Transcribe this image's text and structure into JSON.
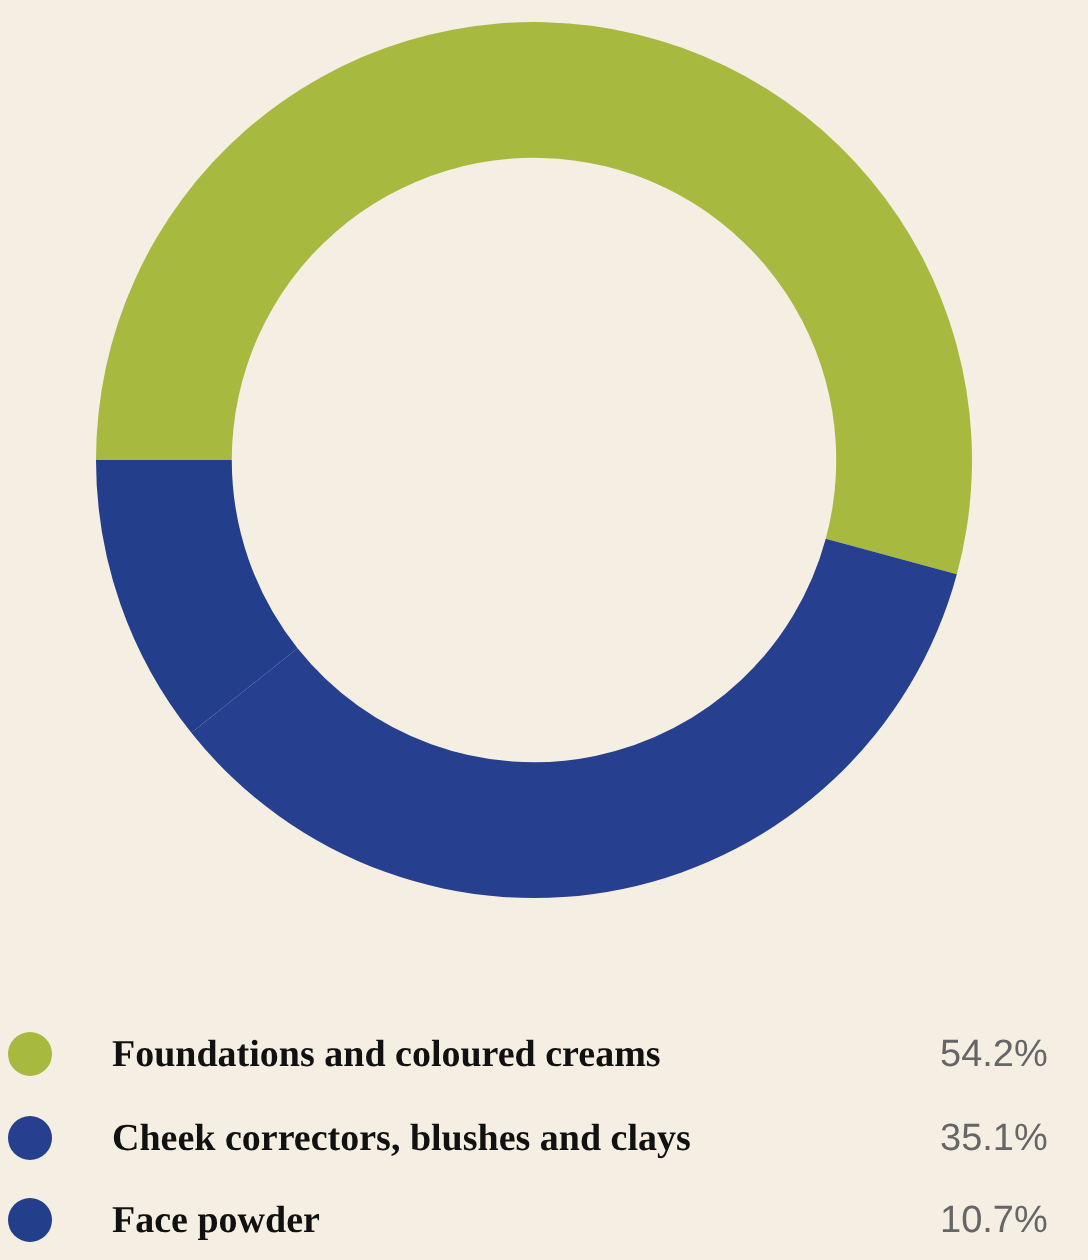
{
  "chart_data": {
    "type": "donut",
    "categories": [
      "Foundations and coloured creams",
      "Cheek correctors, blushes and clays",
      "Face powder"
    ],
    "values": [
      54.2,
      35.1,
      10.7
    ],
    "value_labels": [
      "54.2%",
      "35.1%",
      "10.7%"
    ],
    "colors": [
      "#a8b940",
      "#263f8e",
      "#233e8b"
    ],
    "legend": "bottom"
  }
}
